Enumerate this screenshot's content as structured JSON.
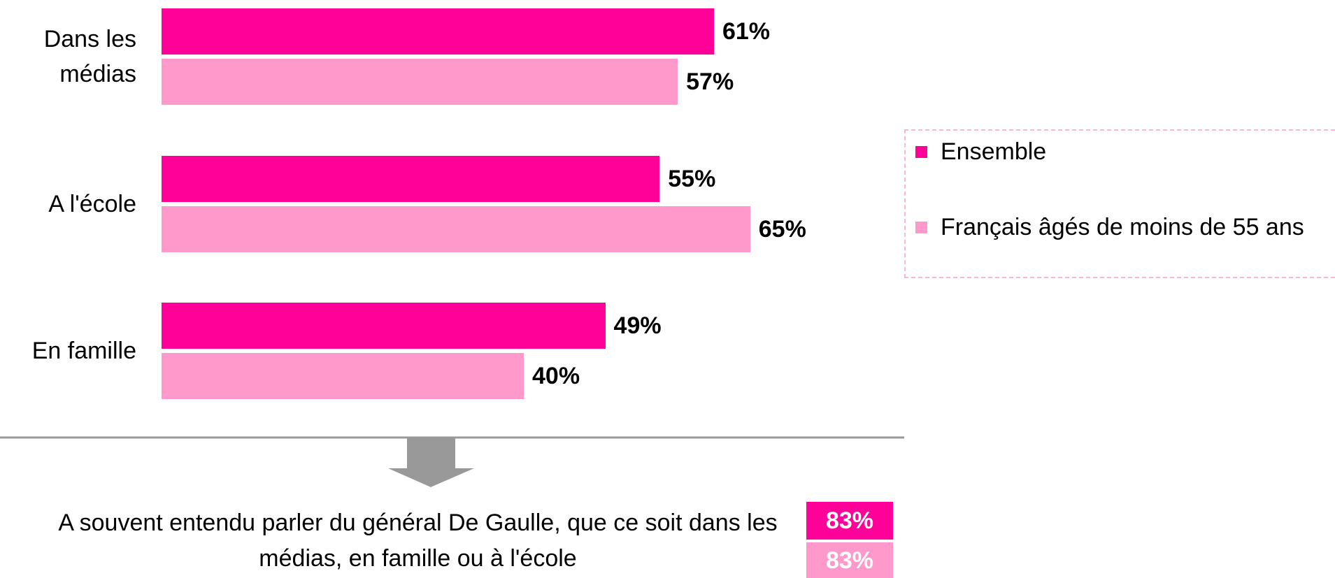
{
  "chart_data": {
    "type": "bar",
    "orientation": "horizontal",
    "categories": [
      "Dans les médias",
      "A l'école",
      "En famille"
    ],
    "series": [
      {
        "name": "Ensemble",
        "color": "#ff0099",
        "values": [
          61,
          55,
          49
        ],
        "value_labels": [
          "61%",
          "55%",
          "49%"
        ]
      },
      {
        "name": "Français âgés de moins de 55 ans",
        "color": "#ff99cc",
        "values": [
          57,
          65,
          40
        ],
        "value_labels": [
          "57%",
          "65%",
          "40%"
        ]
      }
    ],
    "legend": "right"
  },
  "summary": {
    "text": "A souvent entendu parler du général De Gaulle, que ce soit dans les médias, en famille ou à l'école",
    "values": [
      83,
      83
    ],
    "value_labels": [
      "83%",
      "83%"
    ]
  }
}
